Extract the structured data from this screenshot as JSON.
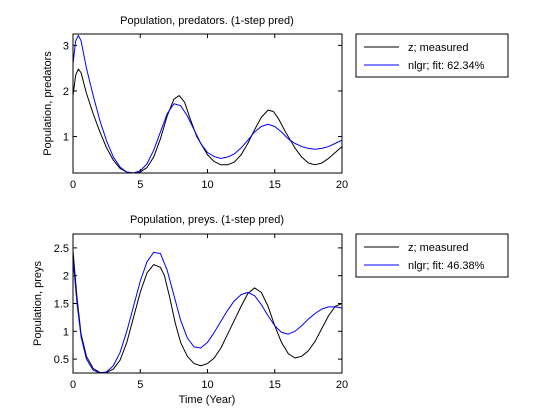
{
  "chart_data": [
    {
      "type": "line",
      "title": "Population, predators. (1-step pred)",
      "xlabel": "",
      "ylabel": "Population, predators",
      "xlim": [
        0,
        20
      ],
      "ylim": [
        0.2,
        3.25
      ],
      "xticks": [
        0,
        5,
        10,
        15,
        20
      ],
      "yticks": [
        1,
        2,
        3
      ],
      "grid": false,
      "legend_position": "outside-right",
      "series": [
        {
          "name": "z; measured",
          "color": "#000000",
          "x": [
            0,
            0.2,
            0.4,
            0.6,
            1,
            1.5,
            2,
            2.5,
            3,
            3.5,
            4,
            4.5,
            5,
            5.5,
            6,
            6.5,
            7,
            7.5,
            7.9,
            8.3,
            8.7,
            9.2,
            10,
            10.5,
            11,
            11.5,
            12,
            12.5,
            13,
            13.5,
            14,
            14.5,
            14.9,
            15.3,
            15.8,
            16.5,
            17,
            17.5,
            18,
            18.5,
            19,
            19.5,
            20
          ],
          "values": [
            1.9,
            2.35,
            2.48,
            2.4,
            1.95,
            1.5,
            1.1,
            0.75,
            0.48,
            0.3,
            0.22,
            0.2,
            0.22,
            0.32,
            0.55,
            0.95,
            1.45,
            1.82,
            1.9,
            1.75,
            1.4,
            1.0,
            0.6,
            0.45,
            0.38,
            0.38,
            0.44,
            0.6,
            0.85,
            1.15,
            1.42,
            1.58,
            1.55,
            1.38,
            1.1,
            0.75,
            0.55,
            0.42,
            0.38,
            0.42,
            0.52,
            0.65,
            0.78
          ]
        },
        {
          "name": "nlgr; fit: 62.34%",
          "color": "#0000ff",
          "x": [
            0,
            0.2,
            0.4,
            0.6,
            1,
            1.5,
            2,
            2.5,
            3,
            3.5,
            4,
            4.5,
            5,
            5.5,
            6,
            6.5,
            7,
            7.5,
            8,
            8.5,
            9,
            9.5,
            10,
            10.5,
            11,
            11.5,
            12,
            12.5,
            13,
            13.5,
            14,
            14.5,
            15,
            15.5,
            16,
            16.5,
            17,
            17.5,
            18,
            18.5,
            19,
            19.5,
            20
          ],
          "values": [
            2.6,
            3.1,
            3.22,
            3.1,
            2.5,
            1.9,
            1.35,
            0.9,
            0.55,
            0.33,
            0.22,
            0.2,
            0.25,
            0.4,
            0.7,
            1.1,
            1.5,
            1.72,
            1.68,
            1.45,
            1.15,
            0.85,
            0.65,
            0.56,
            0.52,
            0.55,
            0.62,
            0.75,
            0.92,
            1.1,
            1.22,
            1.27,
            1.22,
            1.1,
            0.95,
            0.85,
            0.78,
            0.74,
            0.72,
            0.74,
            0.78,
            0.85,
            0.92
          ]
        }
      ]
    },
    {
      "type": "line",
      "title": "Population, preys. (1-step pred)",
      "xlabel": "Time (Year)",
      "ylabel": "Population, preys",
      "xlim": [
        0,
        20
      ],
      "ylim": [
        0.25,
        2.75
      ],
      "xticks": [
        0,
        5,
        10,
        15,
        20
      ],
      "yticks": [
        0.5,
        1,
        1.5,
        2,
        2.5
      ],
      "grid": false,
      "legend_position": "outside-right",
      "series": [
        {
          "name": "z; measured",
          "color": "#000000",
          "x": [
            0,
            0.3,
            0.6,
            1,
            1.5,
            2,
            2.5,
            3,
            3.5,
            4,
            4.5,
            5,
            5.5,
            6,
            6.5,
            6.8,
            7.2,
            7.6,
            8,
            8.5,
            9,
            9.5,
            10,
            10.5,
            11,
            11.5,
            12,
            12.5,
            13,
            13.5,
            14,
            14.5,
            15,
            15.5,
            16,
            16.5,
            17,
            17.5,
            18,
            18.5,
            19,
            19.5,
            20
          ],
          "values": [
            2.45,
            1.6,
            0.95,
            0.55,
            0.33,
            0.26,
            0.26,
            0.32,
            0.48,
            0.8,
            1.25,
            1.7,
            2.05,
            2.2,
            2.15,
            2.0,
            1.6,
            1.15,
            0.8,
            0.55,
            0.42,
            0.38,
            0.42,
            0.52,
            0.7,
            0.95,
            1.2,
            1.45,
            1.68,
            1.78,
            1.7,
            1.45,
            1.1,
            0.8,
            0.6,
            0.52,
            0.55,
            0.65,
            0.82,
            1.05,
            1.28,
            1.45,
            1.5
          ]
        },
        {
          "name": "nlgr; fit: 46.38%",
          "color": "#0000ff",
          "x": [
            0,
            0.3,
            0.6,
            1,
            1.5,
            2,
            2.5,
            3,
            3.5,
            4,
            4.5,
            5,
            5.5,
            6,
            6.5,
            7,
            7.5,
            8,
            8.5,
            9,
            9.5,
            10,
            10.5,
            11,
            11.5,
            12,
            12.5,
            13,
            13.5,
            14,
            14.5,
            15,
            15.5,
            16,
            16.5,
            17,
            17.5,
            18,
            18.5,
            19,
            19.5,
            20
          ],
          "values": [
            2.3,
            1.5,
            0.9,
            0.5,
            0.3,
            0.25,
            0.27,
            0.38,
            0.62,
            1.0,
            1.45,
            1.9,
            2.25,
            2.42,
            2.4,
            2.1,
            1.65,
            1.2,
            0.88,
            0.72,
            0.7,
            0.8,
            0.98,
            1.18,
            1.38,
            1.55,
            1.66,
            1.7,
            1.64,
            1.48,
            1.28,
            1.1,
            0.98,
            0.95,
            1.0,
            1.1,
            1.22,
            1.32,
            1.4,
            1.44,
            1.44,
            1.42
          ]
        }
      ]
    }
  ]
}
